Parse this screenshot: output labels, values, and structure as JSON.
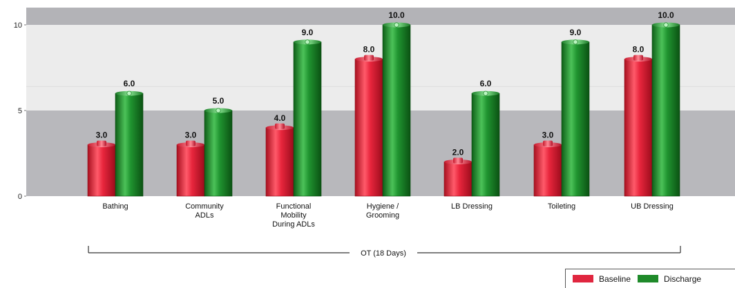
{
  "chart_data": {
    "type": "bar",
    "title": "",
    "xlabel": "",
    "ylabel": "",
    "ylim": [
      0,
      10
    ],
    "yticks": [
      "0",
      "5",
      "10"
    ],
    "categories": [
      "Bathing",
      "Community\nADLs",
      "Functional\nMobility\nDuring ADLs",
      "Hygiene /\nGrooming",
      "LB Dressing",
      "Toileting",
      "UB Dressing"
    ],
    "series": [
      {
        "name": "Baseline",
        "color": "#e0263f",
        "values": [
          3,
          3,
          4,
          8,
          2,
          3,
          8
        ],
        "value_labels": [
          "3.0",
          "3.0",
          "4.0",
          "8.0",
          "2.0",
          "3.0",
          "8.0"
        ]
      },
      {
        "name": "Discharge",
        "color": "#1f8a2a",
        "values": [
          6,
          5,
          9,
          10,
          6,
          9,
          10
        ],
        "value_labels": [
          "6.0",
          "5.0",
          "9.0",
          "10.0",
          "6.0",
          "9.0",
          "10.0"
        ]
      }
    ],
    "group_label": "OT (18 Days)",
    "grid": true,
    "legend": "bottom-right"
  }
}
